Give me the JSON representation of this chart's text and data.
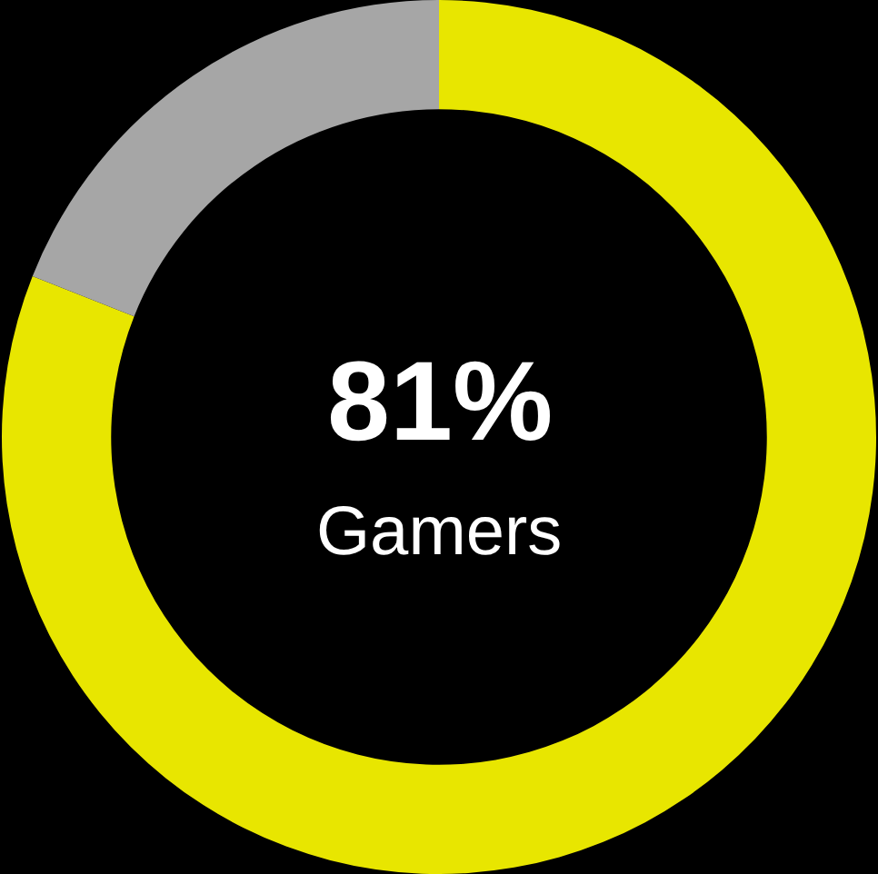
{
  "chart_data": {
    "type": "donut",
    "categories": [
      null,
      null
    ],
    "values": [
      81,
      19
    ],
    "colors": [
      "#e8e600",
      "#a6a6a6"
    ],
    "annotations": [
      "81%",
      "Gamers"
    ],
    "legend": false
  }
}
